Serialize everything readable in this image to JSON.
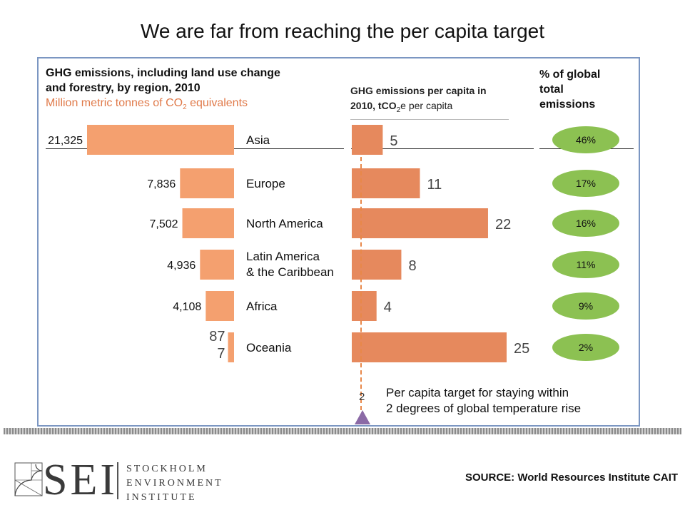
{
  "title": "We are far from reaching the per capita target",
  "header_left": {
    "line1": "GHG emissions, including land use change",
    "line2": "and forestry, by region, 2010",
    "subtitle_prefix": "Million metric tonnes of CO",
    "subtitle_sub": "2",
    "subtitle_suffix": " equivalents"
  },
  "header_mid": {
    "line1": "GHG emissions per capita in",
    "line2_prefix": "2010, tCO",
    "line2_sub": "2",
    "line2_suffix": "e per capita"
  },
  "header_right": {
    "line1": "% of global",
    "line2": "total",
    "line3": "emissions"
  },
  "chart_data": {
    "type": "bar",
    "title": "We are far from reaching the per capita target",
    "categories": [
      "Asia",
      "Europe",
      "North America",
      "Latin America & the Caribbean",
      "Africa",
      "Oceania"
    ],
    "category_lines": [
      [
        "Asia"
      ],
      [
        "Europe"
      ],
      [
        "North America"
      ],
      [
        "Latin America",
        "& the Caribbean"
      ],
      [
        "Africa"
      ],
      [
        "Oceania"
      ]
    ],
    "series": [
      {
        "name": "GHG emissions (Million metric tonnes CO2e)",
        "values": [
          21325,
          7836,
          7502,
          4936,
          4108,
          877
        ],
        "labels": [
          "21,325",
          "7,836",
          "7,502",
          "4,936",
          "4,108",
          "87\n7"
        ]
      },
      {
        "name": "GHG emissions per capita (tCO2e per capita)",
        "values": [
          5,
          11,
          22,
          8,
          4,
          25
        ],
        "labels": [
          "5",
          "11",
          "22",
          "8",
          "4",
          "25"
        ]
      },
      {
        "name": "% of global total emissions",
        "values": [
          46,
          17,
          16,
          11,
          9,
          2
        ],
        "labels": [
          "46%",
          "17%",
          "16%",
          "11%",
          "9%",
          "2%"
        ]
      }
    ],
    "target": {
      "value": 2,
      "label": "2",
      "legend_line1": "Per capita target for staying within",
      "legend_line2": "2 degrees of global temperature rise"
    }
  },
  "colors": {
    "total_bar": "#f4a06f",
    "percap_bar": "#e6895d",
    "pct_ellipse": "#8cc152",
    "target_line": "#e8884a",
    "target_marker": "#8b6aa6",
    "frame": "#7b96c2"
  },
  "source": "SOURCE: World Resources Institute CAIT",
  "logo": {
    "mark": "SEI",
    "line1": "STOCKHOLM",
    "line2": "ENVIRONMENT",
    "line3": "INSTITUTE"
  }
}
